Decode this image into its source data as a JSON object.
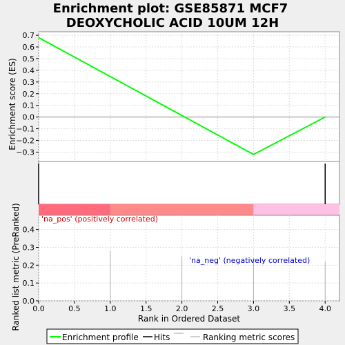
{
  "title_line1": "Enrichment plot: GSE85871 MCF7",
  "title_line2": "DEOXYCHOLIC ACID 10UM 12H",
  "chart_data": [
    {
      "type": "line",
      "panel": "enrichment",
      "ylabel": "Enrichment score (ES)",
      "ylim": [
        -0.38,
        0.73
      ],
      "yticks": [
        0.7,
        0.6,
        0.5,
        0.4,
        0.3,
        0.2,
        0.1,
        0.0,
        -0.1,
        -0.2,
        -0.3
      ],
      "ytick_labels": [
        "0.7",
        "0.6",
        "0.5",
        "0.4",
        "0.3",
        "0.2",
        "0.1",
        "0.0",
        "−0.1",
        "−0.2",
        "−0.3"
      ],
      "grid": true,
      "series": [
        {
          "name": "Enrichment profile",
          "color": "#00ff00",
          "x": [
            0,
            3,
            4
          ],
          "y": [
            0.68,
            -0.32,
            0.0
          ]
        }
      ]
    },
    {
      "type": "bar",
      "panel": "hits",
      "hits_x": [
        0,
        4
      ],
      "heatmap_segments": [
        {
          "from": 0,
          "to": 1,
          "color": "#ff6b7d"
        },
        {
          "from": 1,
          "to": 3,
          "color": "#ff8a8a"
        },
        {
          "from": 3,
          "to": 4.2,
          "color": "#ffc1e3"
        }
      ]
    },
    {
      "type": "bar",
      "panel": "ranked_list",
      "xlabel": "Rank in Ordered Dataset",
      "ylabel": "Ranked list metric (PreRanked)",
      "xlim": [
        0,
        4.2
      ],
      "ylim": [
        0,
        0.48
      ],
      "xticks": [
        0,
        0.5,
        1,
        1.5,
        2,
        2.5,
        3,
        3.5,
        4
      ],
      "xtick_labels": [
        "0.0",
        "0.5",
        "1.0",
        "1.5",
        "2.0",
        "2.5",
        "3.0",
        "3.5",
        "4.0"
      ],
      "yticks": [
        0.0,
        0.1,
        0.2,
        0.3,
        0.4
      ],
      "ytick_labels": [
        "0.0",
        "0.1",
        "0.2",
        "0.3",
        "0.4"
      ],
      "grid": true,
      "x": [
        1,
        2,
        3,
        4
      ],
      "values": [
        0.28,
        0.25,
        0.24,
        0.22
      ],
      "annotations": [
        {
          "text": "'na_pos' (positively correlated)",
          "color": "#cc0000"
        },
        {
          "text": "'na_neg' (negatively correlated)",
          "color": "#0000cc"
        }
      ]
    }
  ],
  "legend": {
    "items": [
      "Enrichment profile",
      "Hits",
      "Ranking metric scores"
    ],
    "colors": [
      "#00ff00",
      "#000000",
      "#c0c0c0"
    ]
  }
}
